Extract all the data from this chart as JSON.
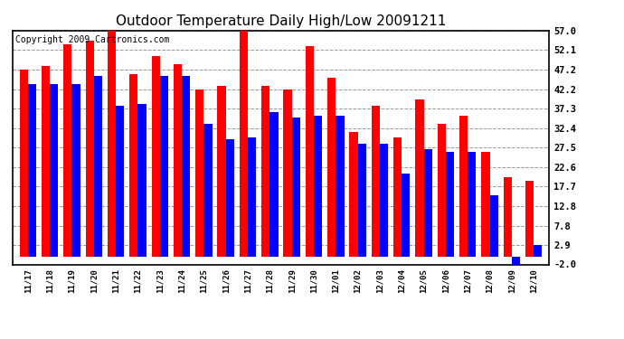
{
  "title": "Outdoor Temperature Daily High/Low 20091211",
  "copyright": "Copyright 2009 Cartronics.com",
  "dates": [
    "11/17",
    "11/18",
    "11/19",
    "11/20",
    "11/21",
    "11/22",
    "11/23",
    "11/24",
    "11/25",
    "11/26",
    "11/27",
    "11/28",
    "11/29",
    "11/30",
    "12/01",
    "12/02",
    "12/03",
    "12/04",
    "12/05",
    "12/06",
    "12/07",
    "12/08",
    "12/09",
    "12/10"
  ],
  "highs": [
    47.2,
    48.0,
    53.5,
    54.5,
    57.0,
    46.0,
    50.5,
    48.5,
    42.2,
    43.0,
    57.0,
    43.0,
    42.2,
    53.0,
    45.0,
    31.5,
    38.0,
    30.0,
    39.5,
    33.5,
    35.5,
    26.5,
    20.0,
    19.0
  ],
  "lows": [
    43.5,
    43.5,
    43.5,
    45.5,
    38.0,
    38.5,
    45.5,
    45.5,
    33.5,
    29.5,
    30.0,
    36.5,
    35.0,
    35.5,
    35.5,
    28.5,
    28.5,
    21.0,
    27.0,
    26.5,
    26.5,
    15.5,
    -2.0,
    2.9
  ],
  "yticks": [
    57.0,
    52.1,
    47.2,
    42.2,
    37.3,
    32.4,
    27.5,
    22.6,
    17.7,
    12.8,
    7.8,
    2.9,
    -2.0
  ],
  "ymin": -2.0,
  "ymax": 57.0,
  "high_color": "#ff0000",
  "low_color": "#0000ff",
  "bg_color": "#ffffff",
  "grid_color": "#999999",
  "title_fontsize": 11,
  "copyright_fontsize": 7
}
